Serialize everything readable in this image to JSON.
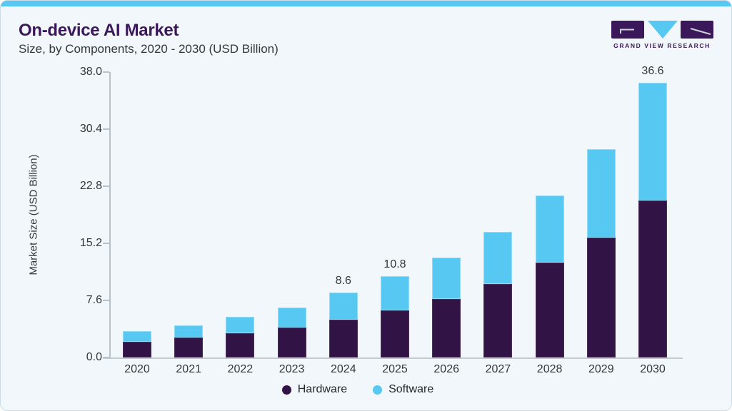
{
  "header": {
    "title": "On-device AI Market",
    "subtitle": "Size, by Components, 2020 - 2030 (USD Billion)"
  },
  "logo": {
    "text": "GRAND VIEW RESEARCH",
    "purple": "#3a1859",
    "blue": "#56c8f2"
  },
  "colors": {
    "card_background": "#f1f7fa",
    "card_border": "#ccdde7",
    "accent_bar": "#56c8f2",
    "hardware": "#321345",
    "software": "#56c8f2",
    "axis": "#b9c1c9",
    "text": "#33373c",
    "title_purple": "#3a1859"
  },
  "chart_data": {
    "type": "bar",
    "stacked": true,
    "title": "On-device AI Market Size, by Components, 2020 - 2030 (USD Billion)",
    "xlabel": "",
    "ylabel": "Market Size (USD Billion)",
    "categories": [
      "2020",
      "2021",
      "2022",
      "2023",
      "2024",
      "2025",
      "2026",
      "2027",
      "2028",
      "2029",
      "2030"
    ],
    "series": [
      {
        "name": "Hardware",
        "color": "#321345",
        "values": [
          2.1,
          2.7,
          3.2,
          4.0,
          5.0,
          6.3,
          7.8,
          9.8,
          12.6,
          16.0,
          20.9
        ]
      },
      {
        "name": "Software",
        "color": "#56c8f2",
        "values": [
          1.4,
          1.6,
          2.2,
          2.7,
          3.6,
          4.5,
          5.5,
          6.9,
          9.0,
          11.7,
          15.7
        ]
      }
    ],
    "annotations": [
      "",
      "",
      "",
      "",
      "8.6",
      "10.8",
      "",
      "",
      "",
      "",
      "36.6"
    ],
    "yticks_labels": [
      "38.0",
      "30.4",
      "22.8",
      "15.2",
      "7.6",
      "0.0"
    ],
    "ytick_values": [
      38.0,
      30.4,
      22.8,
      15.2,
      7.6,
      0.0
    ],
    "ylim": [
      0,
      38
    ],
    "grid": false,
    "legend_position": "bottom"
  }
}
